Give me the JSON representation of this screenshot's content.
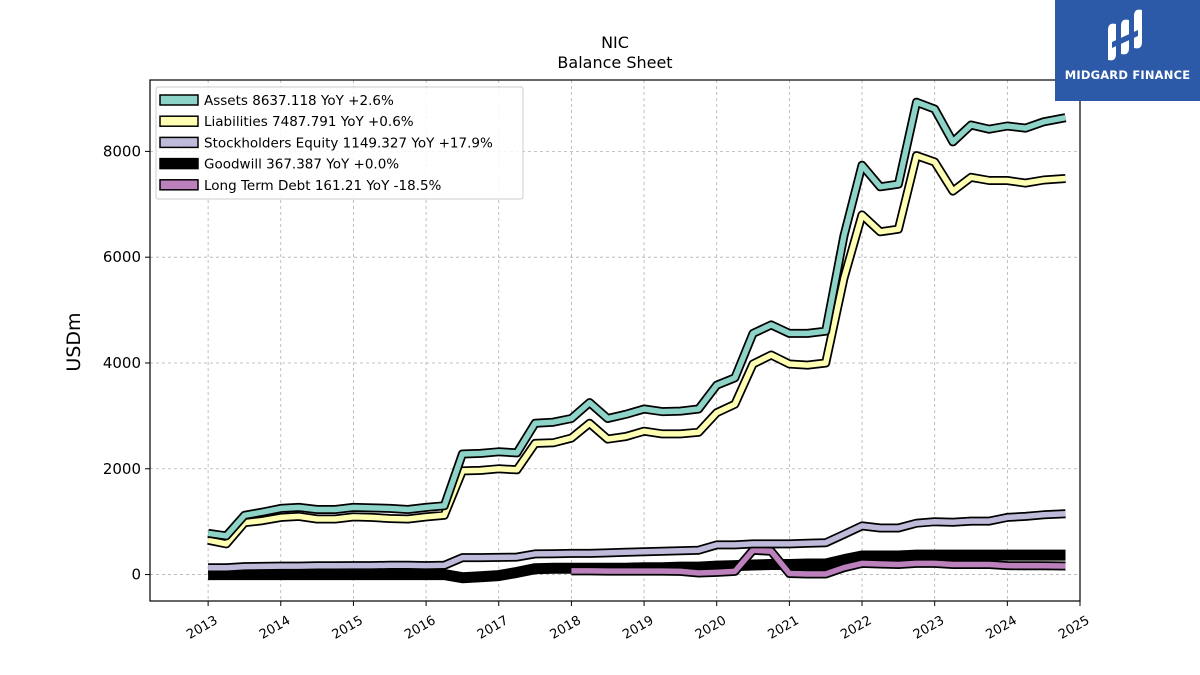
{
  "chart_data": {
    "type": "line",
    "title": "NIC",
    "subtitle": "Balance  Sheet",
    "ylabel": "USDm",
    "xlabel": "",
    "ylim": [
      -500,
      9350
    ],
    "xlim": [
      2012.2,
      2025.0
    ],
    "yticks": [
      0,
      2000,
      4000,
      6000,
      8000
    ],
    "xticks": [
      2013,
      2014,
      2015,
      2016,
      2017,
      2018,
      2019,
      2020,
      2021,
      2022,
      2023,
      2024,
      2025
    ],
    "grid": true,
    "legend_position": "top-left",
    "series": [
      {
        "name": "Assets",
        "legend": "Assets  8637.118 YoY +2.6%",
        "color": "#8dd3c7",
        "x": [
          2013.0,
          2013.25,
          2013.5,
          2013.75,
          2014.0,
          2014.25,
          2014.5,
          2014.75,
          2015.0,
          2015.25,
          2015.5,
          2015.75,
          2016.0,
          2016.25,
          2016.5,
          2016.75,
          2017.0,
          2017.25,
          2017.5,
          2017.75,
          2018.0,
          2018.25,
          2018.5,
          2018.75,
          2019.0,
          2019.25,
          2019.5,
          2019.75,
          2020.0,
          2020.25,
          2020.5,
          2020.75,
          2021.0,
          2021.25,
          2021.5,
          2021.75,
          2022.0,
          2022.25,
          2022.5,
          2022.75,
          2023.0,
          2023.25,
          2023.5,
          2023.75,
          2024.0,
          2024.25,
          2024.5,
          2024.8
        ],
        "values": [
          780,
          730,
          1120,
          1180,
          1250,
          1270,
          1230,
          1230,
          1270,
          1260,
          1250,
          1230,
          1270,
          1300,
          2280,
          2290,
          2320,
          2300,
          2860,
          2880,
          2950,
          3250,
          2950,
          3030,
          3130,
          3080,
          3090,
          3130,
          3580,
          3720,
          4560,
          4720,
          4560,
          4560,
          4600,
          6400,
          7740,
          7330,
          7380,
          8930,
          8800,
          8180,
          8500,
          8420,
          8480,
          8440,
          8560,
          8637
        ]
      },
      {
        "name": "Liabilities",
        "legend": "Liabilities  7487.791 YoY +0.6%",
        "color": "#ffffb3",
        "x": [
          2013.0,
          2013.25,
          2013.5,
          2013.75,
          2014.0,
          2014.25,
          2014.5,
          2014.75,
          2015.0,
          2015.25,
          2015.5,
          2015.75,
          2016.0,
          2016.25,
          2016.5,
          2016.75,
          2017.0,
          2017.25,
          2017.5,
          2017.75,
          2018.0,
          2018.25,
          2018.5,
          2018.75,
          2019.0,
          2019.25,
          2019.5,
          2019.75,
          2020.0,
          2020.25,
          2020.5,
          2020.75,
          2021.0,
          2021.25,
          2021.5,
          2021.75,
          2022.0,
          2022.25,
          2022.5,
          2022.75,
          2023.0,
          2023.25,
          2023.5,
          2023.75,
          2024.0,
          2024.25,
          2024.5,
          2024.8
        ],
        "values": [
          650,
          580,
          980,
          1020,
          1080,
          1100,
          1050,
          1050,
          1090,
          1080,
          1060,
          1050,
          1090,
          1120,
          1960,
          1970,
          2000,
          1980,
          2480,
          2490,
          2580,
          2860,
          2560,
          2610,
          2710,
          2660,
          2660,
          2690,
          3060,
          3220,
          3980,
          4150,
          3980,
          3960,
          4000,
          5600,
          6800,
          6480,
          6530,
          7920,
          7800,
          7250,
          7510,
          7450,
          7450,
          7400,
          7460,
          7488
        ]
      },
      {
        "name": "Stockholders Equity",
        "legend": "Stockholders Equity  1149.327 YoY +17.9%",
        "color": "#bebada",
        "x": [
          2013.0,
          2013.25,
          2013.5,
          2013.75,
          2014.0,
          2014.25,
          2014.5,
          2014.75,
          2015.0,
          2015.25,
          2015.5,
          2015.75,
          2016.0,
          2016.25,
          2016.5,
          2016.75,
          2017.0,
          2017.25,
          2017.5,
          2017.75,
          2018.0,
          2018.25,
          2018.5,
          2018.75,
          2019.0,
          2019.25,
          2019.5,
          2019.75,
          2020.0,
          2020.25,
          2020.5,
          2020.75,
          2021.0,
          2021.25,
          2021.5,
          2021.75,
          2022.0,
          2022.25,
          2022.5,
          2022.75,
          2023.0,
          2023.25,
          2023.5,
          2023.75,
          2024.0,
          2024.25,
          2024.5,
          2024.8
        ],
        "values": [
          130,
          130,
          150,
          155,
          160,
          160,
          165,
          165,
          170,
          170,
          175,
          175,
          170,
          175,
          320,
          320,
          325,
          330,
          390,
          395,
          400,
          400,
          410,
          420,
          430,
          440,
          450,
          460,
          560,
          560,
          580,
          580,
          580,
          590,
          600,
          760,
          920,
          880,
          880,
          970,
          1000,
          990,
          1010,
          1010,
          1080,
          1100,
          1130,
          1149
        ]
      },
      {
        "name": "Goodwill",
        "legend": "Goodwill  367.387 YoY +0.0%",
        "color": "#000000",
        "x": [
          2013.0,
          2013.25,
          2013.5,
          2013.75,
          2014.0,
          2014.25,
          2014.5,
          2014.75,
          2015.0,
          2015.25,
          2015.5,
          2015.75,
          2016.0,
          2016.25,
          2016.5,
          2016.75,
          2017.0,
          2017.25,
          2017.5,
          2017.75,
          2018.0,
          2018.25,
          2018.5,
          2018.75,
          2019.0,
          2019.25,
          2019.5,
          2019.75,
          2020.0,
          2020.25,
          2020.5,
          2020.75,
          2021.0,
          2021.25,
          2021.5,
          2021.75,
          2022.0,
          2022.25,
          2022.5,
          2022.75,
          2023.0,
          2023.25,
          2023.5,
          2023.75,
          2024.0,
          2024.25,
          2024.5,
          2024.8
        ],
        "values": [
          0,
          0,
          0,
          0,
          0,
          0,
          0,
          0,
          0,
          0,
          0,
          0,
          0,
          0,
          -60,
          -40,
          -20,
          40,
          110,
          120,
          120,
          120,
          120,
          120,
          130,
          130,
          140,
          140,
          160,
          170,
          180,
          190,
          190,
          200,
          200,
          280,
          350,
          350,
          350,
          367,
          367,
          367,
          367,
          367,
          367,
          367,
          367,
          367
        ]
      },
      {
        "name": "Long Term Debt",
        "legend": "Long Term Debt  161.21 YoY -18.5%",
        "color": "#bc80bd",
        "x": [
          2018.0,
          2018.25,
          2018.5,
          2018.75,
          2019.0,
          2019.25,
          2019.5,
          2019.75,
          2020.0,
          2020.25,
          2020.5,
          2020.75,
          2021.0,
          2021.25,
          2021.5,
          2021.75,
          2022.0,
          2022.25,
          2022.5,
          2022.75,
          2023.0,
          2023.25,
          2023.5,
          2023.75,
          2024.0,
          2024.25,
          2024.5,
          2024.8
        ],
        "values": [
          70,
          70,
          65,
          65,
          65,
          65,
          60,
          30,
          40,
          60,
          460,
          440,
          20,
          10,
          10,
          130,
          210,
          200,
          190,
          210,
          210,
          190,
          190,
          190,
          170,
          165,
          165,
          161
        ]
      }
    ]
  },
  "logo": {
    "text": "MIDGARD FINANCE"
  }
}
